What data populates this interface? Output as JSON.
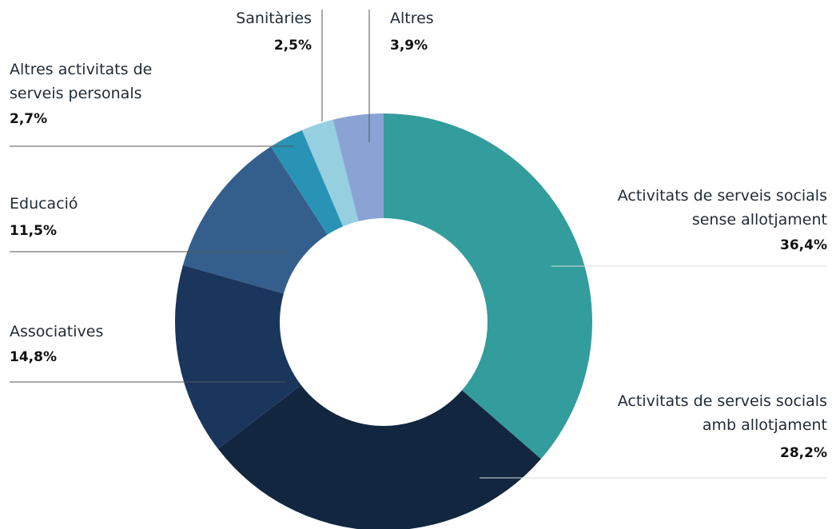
{
  "chart_data": {
    "type": "donut",
    "categories": [
      "Activitats de serveis socials sense allotjament",
      "Activitats de serveis socials amb allotjament",
      "Associatives",
      "Educació",
      "Altres activitats de serveis personals",
      "Sanitàries",
      "Altres"
    ],
    "values": [
      36.4,
      28.2,
      14.8,
      11.5,
      2.7,
      2.5,
      3.9
    ],
    "value_labels": [
      "36,4%",
      "28,2%",
      "14,8%",
      "11,5%",
      "2,7%",
      "2,5%",
      "3,9%"
    ],
    "colors": [
      "#339c9c",
      "#12263f",
      "#1b365d",
      "#345e8c",
      "#2993b5",
      "#95cfe0",
      "#8aa3d4"
    ]
  }
}
